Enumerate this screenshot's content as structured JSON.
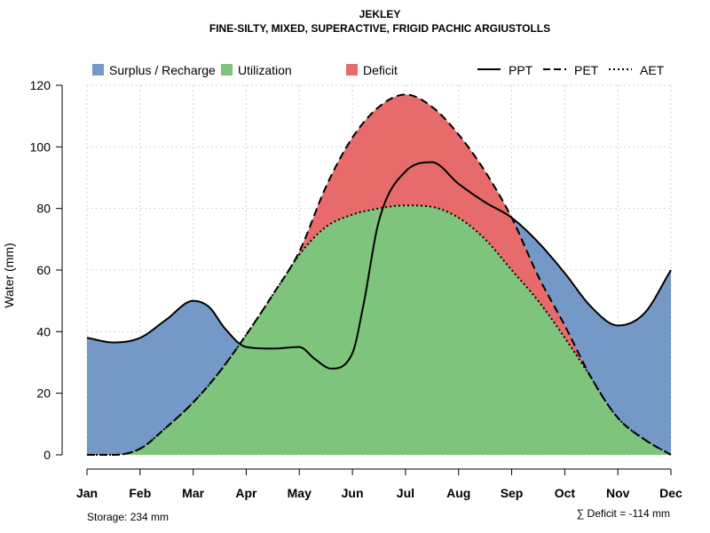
{
  "chart_data": {
    "type": "area",
    "title": "JEKLEY",
    "subtitle": "FINE-SILTY, MIXED, SUPERACTIVE, FRIGID PACHIC ARGIUSTOLLS",
    "ylabel": "Water (mm)",
    "xlabel": "",
    "categories": [
      "Jan",
      "Feb",
      "Mar",
      "Apr",
      "May",
      "Jun",
      "Jul",
      "Aug",
      "Sep",
      "Oct",
      "Nov",
      "Dec"
    ],
    "ylim": [
      0,
      120
    ],
    "yticks": [
      0,
      20,
      40,
      60,
      80,
      100,
      120
    ],
    "grid": true,
    "legend": {
      "areas": [
        {
          "name": "Surplus / Recharge",
          "color": "#7599c6"
        },
        {
          "name": "Utilization",
          "color": "#7fc47d"
        },
        {
          "name": "Deficit",
          "color": "#e86b6b"
        }
      ],
      "lines": [
        {
          "name": "PPT",
          "style": "solid"
        },
        {
          "name": "PET",
          "style": "dashed"
        },
        {
          "name": "AET",
          "style": "dotted"
        }
      ]
    },
    "series": [
      {
        "name": "PPT",
        "x": [
          1,
          1.5,
          2,
          2.5,
          3,
          3.3,
          3.6,
          4,
          4.5,
          5,
          5.3,
          5.6,
          6,
          6.2,
          6.5,
          7,
          7.5,
          8,
          8.5,
          9,
          9.5,
          10,
          10.5,
          11,
          11.5,
          12
        ],
        "values": [
          38,
          36.5,
          38,
          44,
          50,
          48,
          41,
          35,
          34.5,
          35,
          31,
          28,
          33,
          48,
          76,
          92,
          95,
          88,
          82,
          77,
          69,
          59,
          48,
          42,
          46,
          60
        ]
      },
      {
        "name": "PET",
        "x": [
          1,
          1.5,
          2,
          2.5,
          3,
          3.5,
          4,
          4.5,
          5,
          5.5,
          6,
          6.5,
          7,
          7.5,
          8,
          8.5,
          9,
          9.5,
          10,
          10.5,
          11,
          11.5,
          12
        ],
        "values": [
          0,
          0,
          2,
          9,
          17,
          27,
          39,
          52,
          66,
          87,
          103,
          113,
          117,
          113,
          104,
          92,
          77,
          58,
          42,
          25,
          12,
          5,
          0
        ]
      },
      {
        "name": "AET",
        "x": [
          1,
          1.5,
          2,
          2.5,
          3,
          3.5,
          4,
          4.5,
          5,
          5.5,
          6,
          6.5,
          7,
          7.5,
          8,
          8.5,
          9,
          9.5,
          10,
          10.5,
          11,
          11.5,
          12
        ],
        "values": [
          0,
          0,
          2,
          9,
          17,
          27,
          39,
          52,
          65,
          74,
          78,
          80,
          81,
          80.5,
          77,
          70,
          60,
          50,
          38,
          25,
          12,
          5,
          0
        ]
      }
    ]
  },
  "footer": {
    "storage": "Storage: 234 mm",
    "deficit": "∑ Deficit = -114 mm"
  }
}
